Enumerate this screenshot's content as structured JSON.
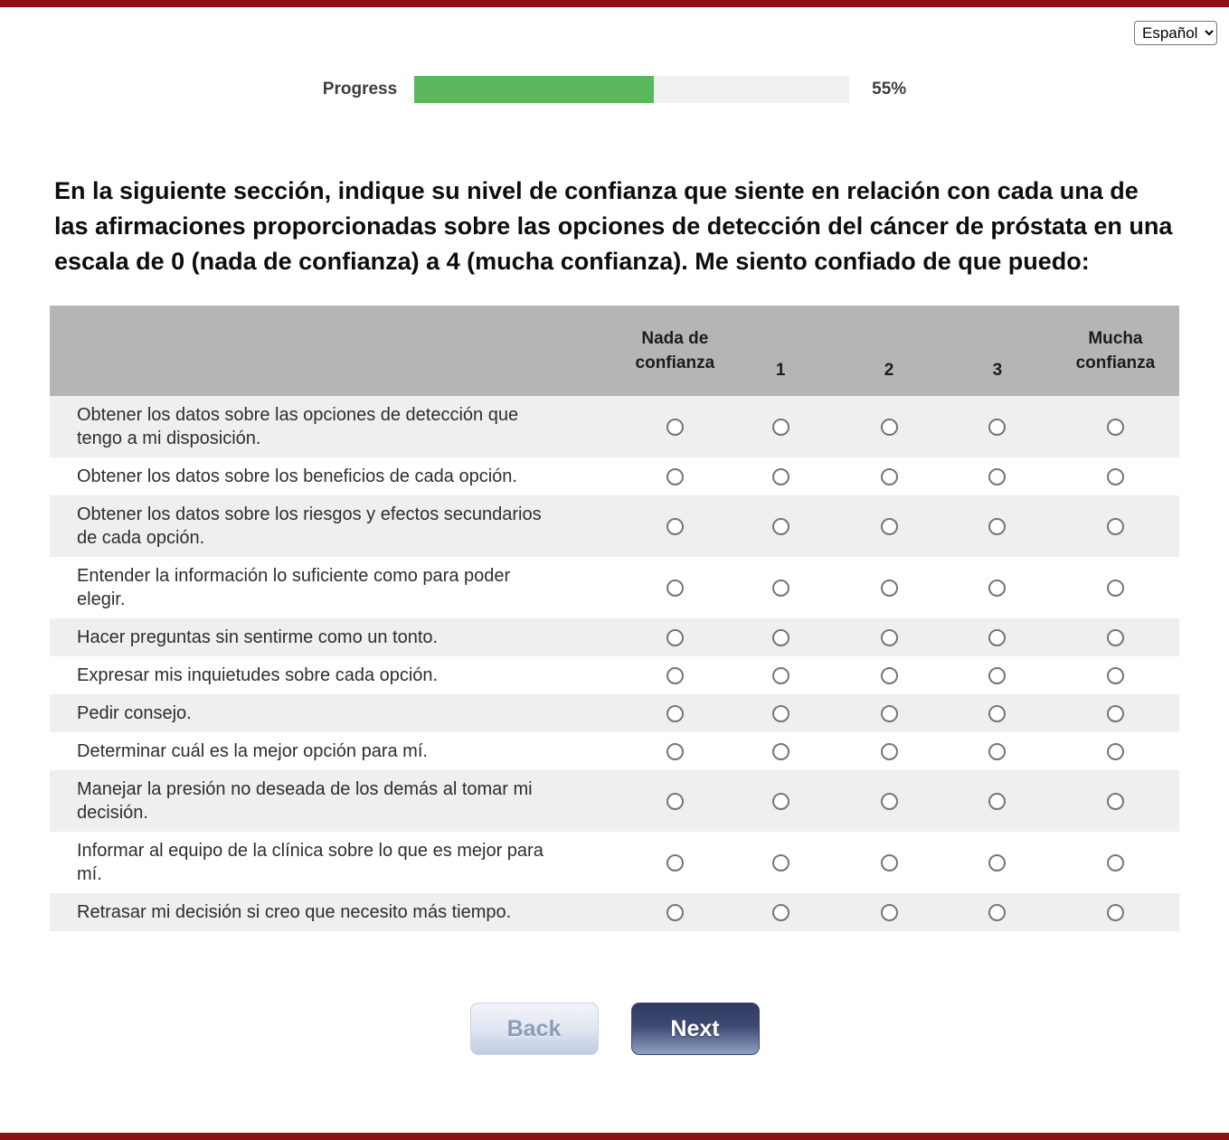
{
  "language": {
    "selected": "Español"
  },
  "progress": {
    "label": "Progress",
    "percent": 55,
    "percent_label": "55%"
  },
  "heading": "En la siguiente sección, indique su nivel de confianza que siente en relación con cada una de las afirmaciones proporcionadas sobre las opciones de detección del cáncer de próstata en una escala de 0 (nada de confianza) a 4 (mucha confianza). Me siento confiado de que puedo:",
  "table": {
    "columns": [
      "Nada de confianza",
      "1",
      "2",
      "3",
      "Mucha confianza"
    ],
    "rows": [
      "Obtener los datos sobre las opciones de detección que tengo a mi disposición.",
      "Obtener los datos sobre los beneficios de cada opción.",
      "Obtener los datos sobre los riesgos y efectos secundarios de cada opción.",
      "Entender la información lo suficiente como para poder elegir.",
      "Hacer preguntas sin sentirme como un tonto.",
      "Expresar mis inquietudes sobre cada opción.",
      "Pedir consejo.",
      "Determinar cuál es la mejor opción para mí.",
      "Manejar la presión no deseada de los demás al tomar mi decisión.",
      "Informar al equipo de la clínica sobre lo que es mejor para mí.",
      "Retrasar mi decisión si creo que necesito más tiempo."
    ]
  },
  "buttons": {
    "back": "Back",
    "next": "Next"
  },
  "colors": {
    "accent_red": "#8e1111",
    "progress_green": "#5cb85c",
    "header_gray": "#b5b5b5",
    "row_gray": "#efefef"
  }
}
